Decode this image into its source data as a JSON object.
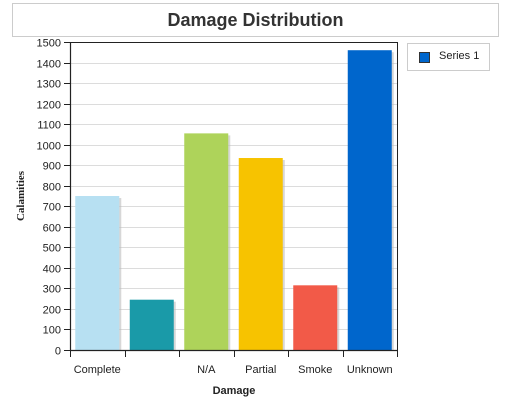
{
  "chart_data": {
    "type": "bar",
    "title": "Damage Distribution",
    "xlabel": "Damage",
    "ylabel": "Calamities",
    "categories": [
      "Complete",
      "",
      "N/A",
      "Partial",
      "Smoke",
      "Unknown"
    ],
    "series": [
      {
        "name": "Series 1",
        "values": [
          750,
          245,
          1055,
          935,
          315,
          1460
        ]
      }
    ],
    "colors": [
      "#b7e0f2",
      "#1a9aa8",
      "#aed35a",
      "#f7c300",
      "#f25a48",
      "#0066cc"
    ],
    "legend_color": "#0066cc",
    "ylim": [
      0,
      1500
    ],
    "ytick_step": 100,
    "grid": true,
    "legend_position": "right"
  }
}
